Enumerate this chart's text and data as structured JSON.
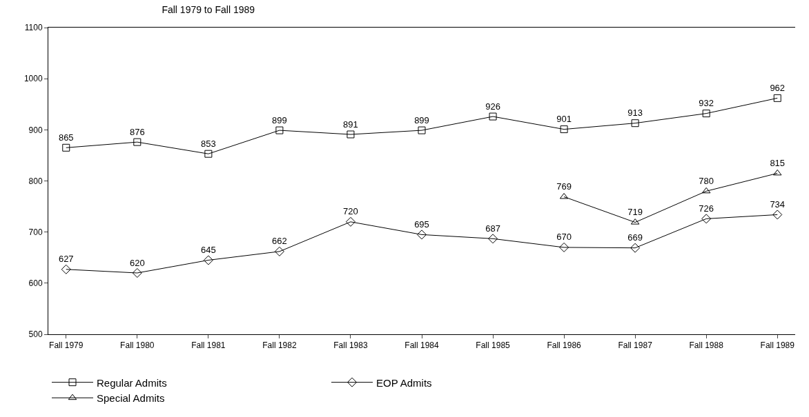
{
  "chart_data": {
    "type": "line",
    "title": "Fall 1979 to Fall 1989",
    "categories": [
      "Fall 1979",
      "Fall 1980",
      "Fall 1981",
      "Fall 1982",
      "Fall 1983",
      "Fall 1984",
      "Fall 1985",
      "Fall 1986",
      "Fall 1987",
      "Fall 1988",
      "Fall 1989"
    ],
    "series": [
      {
        "name": "Regular Admits",
        "color": "#000000",
        "marker": "square",
        "values": [
          865,
          876,
          853,
          899,
          891,
          899,
          926,
          901,
          913,
          932,
          962
        ]
      },
      {
        "name": "EOP Admits",
        "color": "#000000",
        "marker": "diamond",
        "values": [
          627,
          620,
          645,
          662,
          720,
          695,
          687,
          670,
          669,
          726,
          734
        ]
      },
      {
        "name": "Special Admits",
        "color": "#000000",
        "marker": "triangle",
        "values": [
          null,
          null,
          null,
          null,
          null,
          null,
          null,
          769,
          719,
          780,
          815
        ]
      }
    ],
    "ylim": [
      500,
      1100
    ],
    "yticks": [
      500,
      600,
      700,
      800,
      900,
      1000,
      1100
    ],
    "grid": false,
    "legend": "bottom",
    "data_labels": true,
    "line_style": "solid"
  }
}
